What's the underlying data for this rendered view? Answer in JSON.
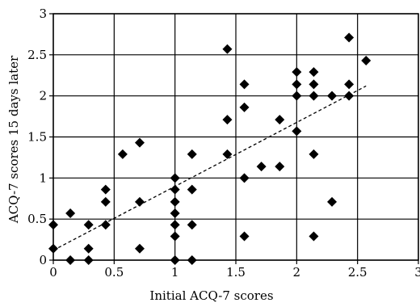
{
  "chart_data": {
    "type": "scatter",
    "title": "",
    "xlabel": "Initial ACQ-7 scores",
    "ylabel": "ACQ-7 scores 15 days later",
    "xlim": [
      0,
      3
    ],
    "ylim": [
      0,
      3
    ],
    "x_ticks": [
      "0",
      "0.5",
      "1",
      "1.5",
      "2",
      "2.5",
      "3"
    ],
    "y_ticks": [
      "0",
      "0.5",
      "1",
      "1.5",
      "2",
      "2.5",
      "3"
    ],
    "x_tick_values": [
      0,
      0.5,
      1,
      1.5,
      2,
      2.5,
      3
    ],
    "y_tick_values": [
      0,
      0.5,
      1,
      1.5,
      2,
      2.5,
      3
    ],
    "grid": true,
    "legend": "none",
    "marker": "diamond",
    "colors": {
      "marker": "#000000",
      "grid": "#000000",
      "trendline": "#000000"
    },
    "trendline": {
      "style": "dashed",
      "x": [
        0,
        2.57
      ],
      "y": [
        0.12,
        2.12
      ]
    },
    "points": [
      [
        0.0,
        0.43
      ],
      [
        0.0,
        0.14
      ],
      [
        0.14,
        0.57
      ],
      [
        0.14,
        0.0
      ],
      [
        0.29,
        0.43
      ],
      [
        0.29,
        0.14
      ],
      [
        0.29,
        0.0
      ],
      [
        0.43,
        0.86
      ],
      [
        0.43,
        0.71
      ],
      [
        0.43,
        0.43
      ],
      [
        0.57,
        1.29
      ],
      [
        0.71,
        1.43
      ],
      [
        0.71,
        0.71
      ],
      [
        0.71,
        0.14
      ],
      [
        1.0,
        1.0
      ],
      [
        1.0,
        0.86
      ],
      [
        1.0,
        0.71
      ],
      [
        1.0,
        0.57
      ],
      [
        1.0,
        0.43
      ],
      [
        1.0,
        0.29
      ],
      [
        1.0,
        0.0
      ],
      [
        1.14,
        1.29
      ],
      [
        1.14,
        0.86
      ],
      [
        1.14,
        0.43
      ],
      [
        1.14,
        0.0
      ],
      [
        1.43,
        2.57
      ],
      [
        1.43,
        1.71
      ],
      [
        1.43,
        1.29
      ],
      [
        1.57,
        2.14
      ],
      [
        1.57,
        1.86
      ],
      [
        1.57,
        1.0
      ],
      [
        1.57,
        0.29
      ],
      [
        1.71,
        1.14
      ],
      [
        1.86,
        1.71
      ],
      [
        1.86,
        1.14
      ],
      [
        2.0,
        2.29
      ],
      [
        2.0,
        2.14
      ],
      [
        2.0,
        2.0
      ],
      [
        2.0,
        1.57
      ],
      [
        2.14,
        2.29
      ],
      [
        2.14,
        2.14
      ],
      [
        2.14,
        2.0
      ],
      [
        2.14,
        1.29
      ],
      [
        2.14,
        0.29
      ],
      [
        2.29,
        2.0
      ],
      [
        2.29,
        0.71
      ],
      [
        2.43,
        2.71
      ],
      [
        2.43,
        2.14
      ],
      [
        2.43,
        2.0
      ],
      [
        2.57,
        2.43
      ]
    ]
  }
}
